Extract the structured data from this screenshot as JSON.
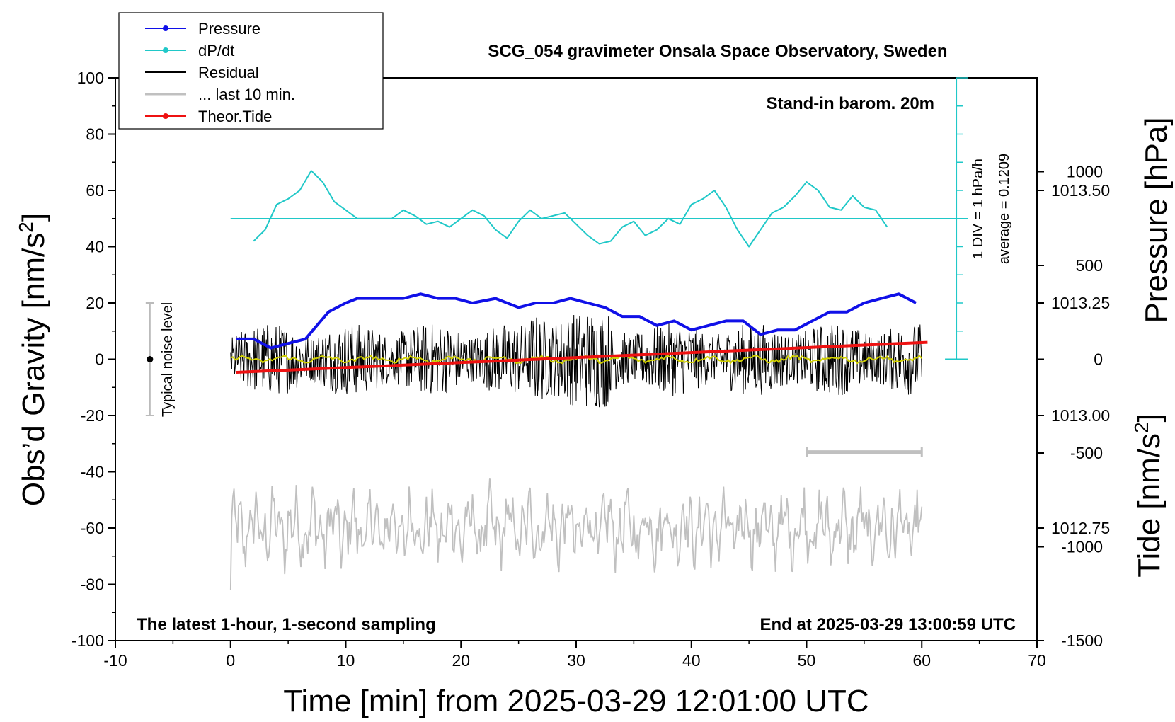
{
  "chart_data": {
    "type": "line",
    "title": "SCG_054 gravimeter Onsala Space Observatory, Sweden",
    "xlabel": "Time [min] from 2025-03-29 12:01:00 UTC",
    "ylabel_left": "Obs’d Gravity [nm/s",
    "ylabel_left_sup": "2",
    "ylabel_left_end": "]",
    "ylabel_right_pressure": "Pressure [hPa]",
    "ylabel_right_tide": "Tide [nm/s",
    "ylabel_right_tide_sup": "2",
    "ylabel_right_tide_end": "]",
    "xlim": [
      -10,
      70
    ],
    "ylim_left": [
      -100,
      100
    ],
    "pressure_lim": [
      1012.5,
      1013.75
    ],
    "tide_lim": [
      -1500,
      1500
    ],
    "x_ticks": [
      "-10",
      "0",
      "10",
      "20",
      "30",
      "40",
      "50",
      "60",
      "70"
    ],
    "y_ticks_left": [
      "100",
      "80",
      "60",
      "40",
      "20",
      "0",
      "-20",
      "-40",
      "-60",
      "-80",
      "-100"
    ],
    "pressure_ticks": [
      "1013.50",
      "1013.25",
      "1013.00",
      "1012.75"
    ],
    "tide_ticks": [
      "1000",
      "500",
      "0",
      "-500",
      "-1000",
      "-1500"
    ],
    "legend": [
      {
        "name": "Pressure",
        "color": "#1010e8",
        "marker": true
      },
      {
        "name": "dP/dt",
        "color": "#20c8c8",
        "marker": true
      },
      {
        "name": "Residual",
        "color": "#000000",
        "marker": false
      },
      {
        "name": "... last 10 min.",
        "color": "#c0c0c0",
        "marker": false
      },
      {
        "name": "Theor.Tide",
        "color": "#ee1111",
        "marker": true
      }
    ],
    "annotations": {
      "barometer": "Stand-in barom. 20m",
      "div_scale": "1 DIV = 1 hPa/h",
      "average": "average = 0.1209",
      "noise": "Typical noise level",
      "bottom_left": "The latest 1-hour, 1-second sampling",
      "bottom_right": "End at 2025-03-29 13:00:59 UTC"
    },
    "noise_bar": {
      "x": -7,
      "y": 0,
      "low": -20,
      "high": 20
    },
    "last10_bar": {
      "x_start": 50,
      "x_end": 60,
      "y": -33
    },
    "dpdt_zero_y": 50,
    "series": [
      {
        "name": "Pressure",
        "color": "#1010e8",
        "axis": "pressure",
        "x": [
          0.5,
          2,
          3.5,
          5,
          6.5,
          7.5,
          8.5,
          10,
          11,
          13,
          15,
          16.5,
          18,
          19.5,
          21,
          23,
          25,
          26.5,
          28,
          29.5,
          31,
          32.5,
          34,
          35.5,
          37,
          38.5,
          40,
          41.5,
          43,
          44.5,
          46,
          47.5,
          49,
          50.5,
          52,
          53.5,
          55,
          56.5,
          58,
          59.5
        ],
        "y": [
          1013.17,
          1013.17,
          1013.15,
          1013.16,
          1013.17,
          1013.2,
          1013.23,
          1013.25,
          1013.26,
          1013.26,
          1013.26,
          1013.27,
          1013.26,
          1013.26,
          1013.25,
          1013.26,
          1013.24,
          1013.25,
          1013.25,
          1013.26,
          1013.25,
          1013.24,
          1013.22,
          1013.22,
          1013.2,
          1013.21,
          1013.19,
          1013.2,
          1013.21,
          1013.21,
          1013.18,
          1013.19,
          1013.19,
          1013.21,
          1013.23,
          1013.23,
          1013.25,
          1013.26,
          1013.27,
          1013.25
        ]
      },
      {
        "name": "dP/dt",
        "color": "#20c8c8",
        "axis": "left",
        "x": [
          2,
          3,
          4,
          5,
          6,
          7,
          8,
          9,
          10,
          11,
          12,
          13,
          14,
          15,
          16,
          17,
          18,
          19,
          20,
          21,
          22,
          23,
          24,
          25,
          26,
          27,
          28,
          29,
          30,
          31,
          32,
          33,
          34,
          35,
          36,
          37,
          38,
          39,
          40,
          41,
          42,
          43,
          44,
          45,
          46,
          47,
          48,
          49,
          50,
          51,
          52,
          53,
          54,
          55,
          56,
          57
        ],
        "y": [
          42,
          46,
          55,
          57,
          60,
          67,
          63,
          56,
          53,
          50,
          50,
          50,
          50,
          53,
          51,
          48,
          49,
          47,
          50,
          53,
          51,
          46,
          43,
          49,
          53,
          50,
          51,
          52,
          48,
          44,
          41,
          42,
          47,
          49,
          44,
          46,
          50,
          48,
          55,
          57,
          60,
          54,
          46,
          40,
          46,
          52,
          54,
          58,
          63,
          60,
          54,
          53,
          58,
          54,
          53,
          47
        ]
      },
      {
        "name": "Theor.Tide",
        "color": "#ee1111",
        "axis": "tide",
        "x": [
          0.5,
          60.5
        ],
        "y": [
          -70,
          90
        ]
      },
      {
        "name": "Residual",
        "color": "#000000",
        "axis": "left",
        "note": "1-second residual, fluctuates about 0 within about ±25 nm/s²"
      },
      {
        "name": "... last 10 min.",
        "color": "#c0c0c0",
        "axis": "left",
        "note": "last 10 min residual, fluctuates about -60 nm/s²"
      }
    ]
  }
}
